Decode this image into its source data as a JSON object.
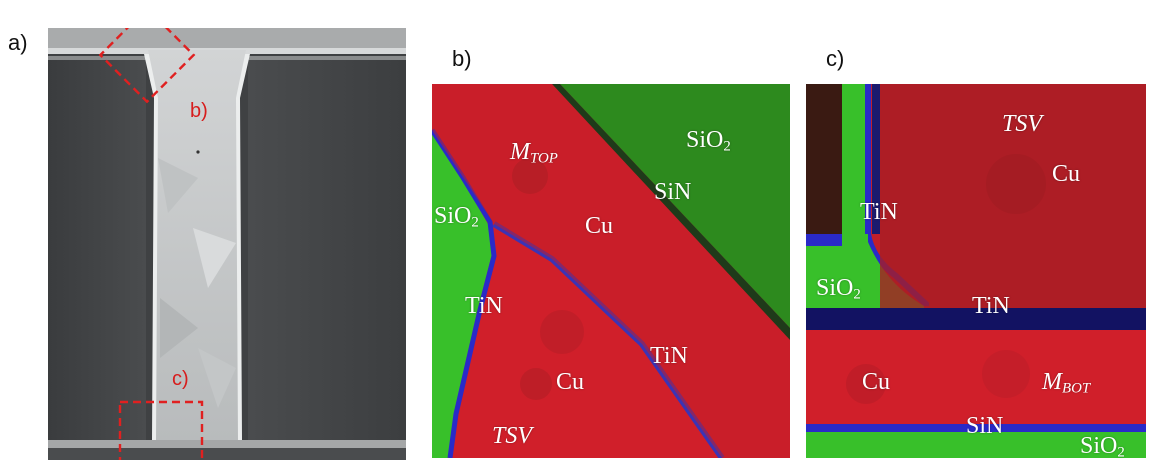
{
  "panels": {
    "a": {
      "letter": "a)",
      "callout_b": "b)",
      "callout_c": "c)"
    },
    "b": {
      "letter": "b)",
      "labels": {
        "sio2_top": "SiO",
        "sio2_top_sub": "2",
        "m_top": "M",
        "m_top_sub": "TOP",
        "sin": "SiN",
        "sio2_left": "SiO",
        "sio2_left_sub": "2",
        "cu_upper": "Cu",
        "tin_left": "TiN",
        "tin_right": "TiN",
        "cu_lower": "Cu",
        "tsv": "TSV"
      }
    },
    "c": {
      "letter": "c)",
      "labels": {
        "tsv": "TSV",
        "cu_upper": "Cu",
        "tin_upper": "TiN",
        "sio2_left": "SiO",
        "sio2_left_sub": "2",
        "tin_mid": "TiN",
        "cu_lower": "Cu",
        "m_bot": "M",
        "m_bot_sub": "BOT",
        "sin": "SiN",
        "sio2_bottom": "SiO",
        "sio2_bottom_sub": "2"
      }
    }
  },
  "colors": {
    "copper": "#d01f2a",
    "copper_dark": "#a81d24",
    "oxide_green": "#2d8a1e",
    "oxide_bright": "#38c02a",
    "barrier_blue": "#2a2ac8",
    "callout_red": "#e02020",
    "sem_dark": "#3f4143",
    "via_fill": "#c9cccd"
  }
}
